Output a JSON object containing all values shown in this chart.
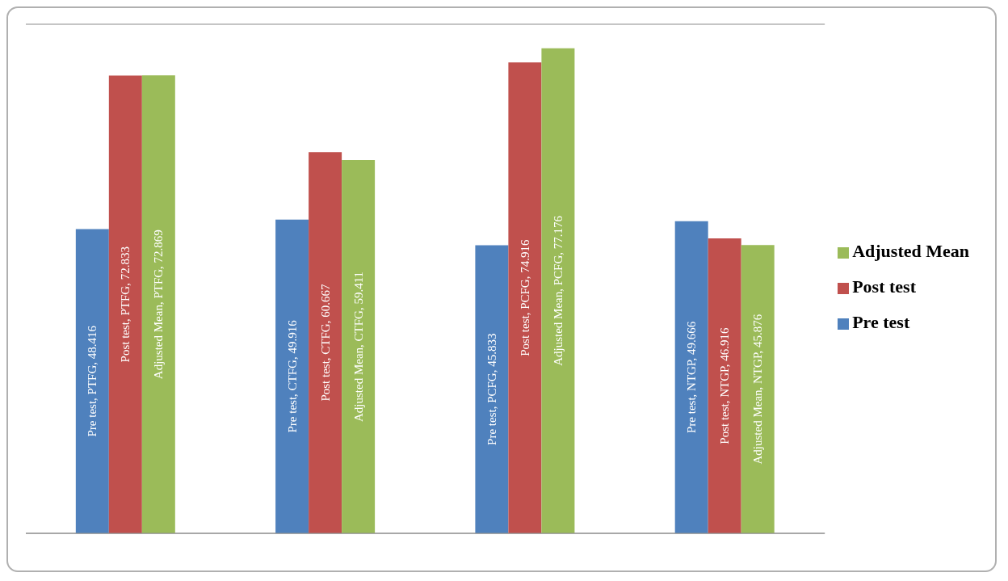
{
  "chart_data": {
    "type": "bar",
    "categories": [
      null,
      null,
      null,
      null
    ],
    "series": [
      {
        "name": "Pre test",
        "color": "#4f81bd",
        "values": [
          48.416,
          49.916,
          45.833,
          49.666
        ],
        "value_labels": [
          "Pre test, PTFG, 48.416",
          "Pre test, CTFG, 49.916",
          "Pre test, PCFG, 45.833",
          "Pre test, NTGP, 49.666"
        ]
      },
      {
        "name": "Post test",
        "color": "#c0504d",
        "values": [
          72.833,
          60.667,
          74.916,
          46.916
        ],
        "value_labels": [
          "Post test, PTFG, 72.833",
          "Post test, CTFG, 60.667",
          "Post test, PCFG, 74.916",
          "Post test, NTGP, 46.916"
        ]
      },
      {
        "name": "Adjusted Mean",
        "color": "#9bbb59",
        "values": [
          72.869,
          59.411,
          77.176,
          45.876
        ],
        "value_labels": [
          "Adjusted Mean, PTFG, 72.869",
          "Adjusted Mean, CTFG, 59.411",
          "Adjusted Mean, PCFG, 77.176",
          "Adjusted Mean, NTGP, 45.876"
        ]
      }
    ],
    "grid": "y",
    "legend": "right"
  }
}
